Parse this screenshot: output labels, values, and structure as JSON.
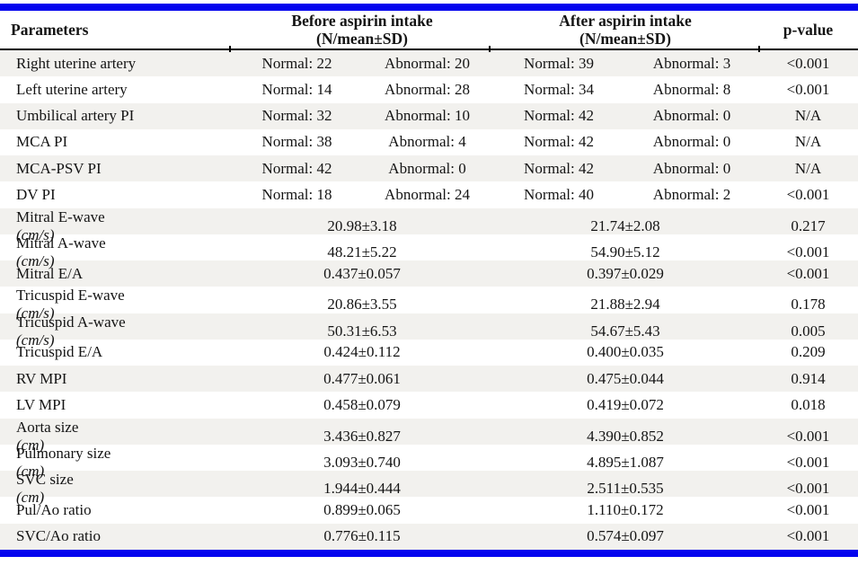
{
  "colors": {
    "accent_bar_blue": "#0404ee",
    "row_shade": "#f2f1ee",
    "header_rule": "#000000",
    "text": "#141414"
  },
  "header": {
    "parameters": "Parameters",
    "before_line1": "Before aspirin intake",
    "before_line2": "(N/mean±SD)",
    "after_line1": "After aspirin intake",
    "after_line2": "(N/mean±SD)",
    "p_value": "p-value"
  },
  "rows": [
    {
      "parameter": "Right uterine artery",
      "unit": "",
      "before_normal": "Normal: 22",
      "before_abnormal": "Abnormal: 20",
      "after_normal": "Normal: 39",
      "after_abnormal": "Abnormal: 3",
      "p": "<0.001"
    },
    {
      "parameter": "Left uterine artery",
      "unit": "",
      "before_normal": "Normal: 14",
      "before_abnormal": "Abnormal: 28",
      "after_normal": "Normal: 34",
      "after_abnormal": "Abnormal: 8",
      "p": "<0.001"
    },
    {
      "parameter": "Umbilical artery PI",
      "unit": "",
      "before_normal": "Normal: 32",
      "before_abnormal": "Abnormal: 10",
      "after_normal": "Normal: 42",
      "after_abnormal": "Abnormal: 0",
      "p": "N/A"
    },
    {
      "parameter": "MCA PI",
      "unit": "",
      "before_normal": "Normal: 38",
      "before_abnormal": "Abnormal: 4",
      "after_normal": "Normal: 42",
      "after_abnormal": "Abnormal: 0",
      "p": "N/A"
    },
    {
      "parameter": "MCA-PSV PI",
      "unit": "",
      "before_normal": "Normal: 42",
      "before_abnormal": "Abnormal: 0",
      "after_normal": "Normal: 42",
      "after_abnormal": "Abnormal: 0",
      "p": "N/A"
    },
    {
      "parameter": "DV PI",
      "unit": "",
      "before_normal": "Normal: 18",
      "before_abnormal": "Abnormal: 24",
      "after_normal": "Normal: 40",
      "after_abnormal": "Abnormal: 2",
      "p": "<0.001"
    },
    {
      "parameter": "Mitral E-wave",
      "unit": "cm/s",
      "before_mean": "20.98±3.18",
      "after_mean": "21.74±2.08",
      "p": "0.217"
    },
    {
      "parameter": "Mitral A-wave",
      "unit": "cm/s",
      "before_mean": "48.21±5.22",
      "after_mean": "54.90±5.12",
      "p": "<0.001"
    },
    {
      "parameter": "Mitral E/A",
      "unit": "",
      "before_mean": "0.437±0.057",
      "after_mean": "0.397±0.029",
      "p": "<0.001"
    },
    {
      "parameter": "Tricuspid E-wave",
      "unit": "cm/s",
      "before_mean": "20.86±3.55",
      "after_mean": "21.88±2.94",
      "p": "0.178"
    },
    {
      "parameter": "Tricuspid A-wave",
      "unit": "cm/s",
      "before_mean": "50.31±6.53",
      "after_mean": "54.67±5.43",
      "p": "0.005"
    },
    {
      "parameter": "Tricuspid E/A",
      "unit": "",
      "before_mean": "0.424±0.112",
      "after_mean": "0.400±0.035",
      "p": "0.209"
    },
    {
      "parameter": "RV MPI",
      "unit": "",
      "before_mean": "0.477±0.061",
      "after_mean": "0.475±0.044",
      "p": "0.914"
    },
    {
      "parameter": "LV MPI",
      "unit": "",
      "before_mean": "0.458±0.079",
      "after_mean": "0.419±0.072",
      "p": "0.018"
    },
    {
      "parameter": "Aorta size",
      "unit": "cm",
      "before_mean": "3.436±0.827",
      "after_mean": "4.390±0.852",
      "p": "<0.001"
    },
    {
      "parameter": "Pulmonary size",
      "unit": "cm",
      "before_mean": "3.093±0.740",
      "after_mean": "4.895±1.087",
      "p": "<0.001"
    },
    {
      "parameter": "SVC size",
      "unit": "cm",
      "before_mean": "1.944±0.444",
      "after_mean": "2.511±0.535",
      "p": "<0.001"
    },
    {
      "parameter": "Pul/Ao ratio",
      "unit": "",
      "before_mean": "0.899±0.065",
      "after_mean": "1.110±0.172",
      "p": "<0.001"
    },
    {
      "parameter": "SVC/Ao ratio",
      "unit": "",
      "before_mean": "0.776±0.115",
      "after_mean": "0.574±0.097",
      "p": "<0.001"
    }
  ]
}
